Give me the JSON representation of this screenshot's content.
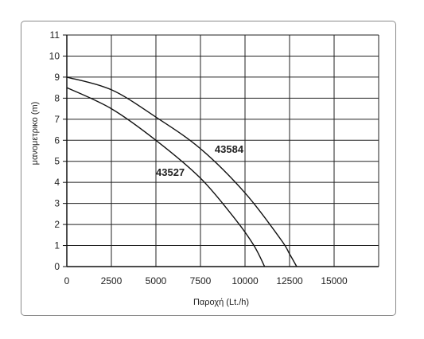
{
  "chart_data": {
    "type": "line",
    "xlabel": "Παροχή (Lt./h)",
    "ylabel": "μανομετρικο  (m)",
    "xlim": [
      0,
      17500
    ],
    "ylim": [
      0,
      11
    ],
    "x_ticks": [
      0,
      2500,
      5000,
      7500,
      10000,
      12500,
      15000
    ],
    "y_ticks": [
      0,
      1,
      2,
      3,
      4,
      5,
      6,
      7,
      8,
      9,
      10,
      11
    ],
    "grid": true,
    "legend": "none",
    "series": [
      {
        "name": "43584",
        "x": [
          0,
          2500,
          5000,
          7500,
          10000,
          12000,
          12500,
          12900
        ],
        "y": [
          9.0,
          8.4,
          7.1,
          5.6,
          3.5,
          1.3,
          0.6,
          0
        ]
      },
      {
        "name": "43527",
        "x": [
          0,
          2500,
          5000,
          7500,
          9500,
          10500,
          11100
        ],
        "y": [
          8.5,
          7.5,
          6.0,
          4.2,
          2.2,
          1.0,
          0
        ]
      }
    ],
    "annotations": [
      {
        "text": "43584",
        "x": 8300,
        "y": 5.4,
        "series": "43584"
      },
      {
        "text": "43527",
        "x": 5000,
        "y": 4.3,
        "series": "43527"
      }
    ]
  }
}
